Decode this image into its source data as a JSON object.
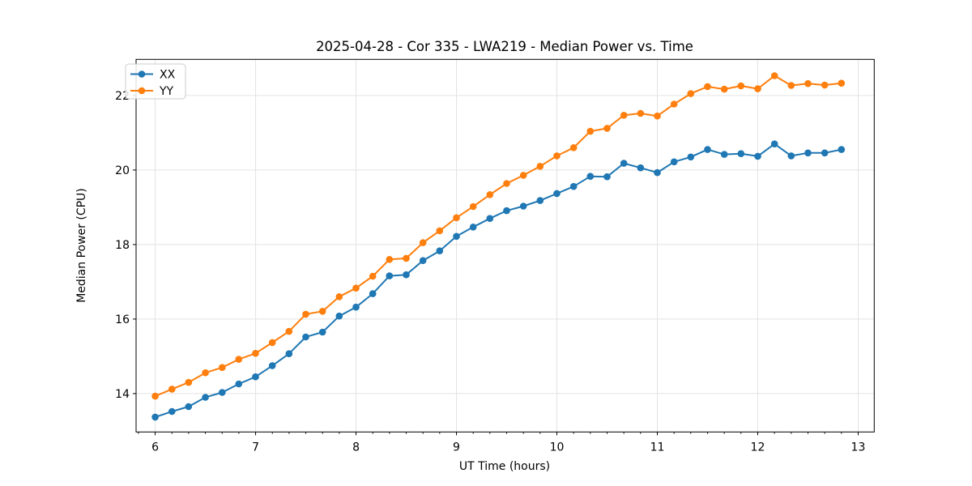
{
  "chart_data": {
    "type": "line",
    "title": "2025-04-28 - Cor 335 - LWA219 - Median Power vs. Time",
    "xlabel": "UT Time (hours)",
    "ylabel": "Median Power (CPU)",
    "xlim": [
      5.81,
      13.16
    ],
    "ylim": [
      12.97,
      22.97
    ],
    "x_ticks": [
      6,
      7,
      8,
      9,
      10,
      11,
      12,
      13
    ],
    "x_minor_tick_step_hours": 0.1667,
    "y_ticks": [
      14,
      16,
      18,
      20,
      22
    ],
    "grid": true,
    "legend_position": "upper left",
    "colors": {
      "xx_series": "#1f77b4",
      "yy_series": "#ff7f0e",
      "grid_line": "#e3e3e3",
      "spine": "#000000"
    },
    "x": [
      6.0,
      6.167,
      6.333,
      6.5,
      6.667,
      6.833,
      7.0,
      7.167,
      7.333,
      7.5,
      7.667,
      7.833,
      8.0,
      8.167,
      8.333,
      8.5,
      8.667,
      8.833,
      9.0,
      9.167,
      9.333,
      9.5,
      9.667,
      9.833,
      10.0,
      10.167,
      10.333,
      10.5,
      10.667,
      10.833,
      11.0,
      11.167,
      11.333,
      11.5,
      11.667,
      11.833,
      12.0,
      12.167,
      12.333,
      12.5,
      12.667,
      12.833
    ],
    "series": [
      {
        "name": "XX",
        "color": "#1f77b4",
        "marker": "circle",
        "values": [
          13.37,
          13.52,
          13.65,
          13.9,
          14.03,
          14.26,
          14.45,
          14.75,
          15.07,
          15.52,
          15.65,
          16.08,
          16.32,
          16.68,
          17.16,
          17.19,
          17.57,
          17.83,
          18.22,
          18.47,
          18.7,
          18.91,
          19.03,
          19.18,
          19.37,
          19.56,
          19.83,
          19.82,
          20.18,
          20.06,
          19.93,
          20.22,
          20.35,
          20.55,
          20.42,
          20.44,
          20.37,
          20.7,
          20.38,
          20.46,
          20.46,
          20.55
        ]
      },
      {
        "name": "YY",
        "color": "#ff7f0e",
        "marker": "circle",
        "values": [
          13.93,
          14.12,
          14.3,
          14.56,
          14.7,
          14.92,
          15.08,
          15.37,
          15.67,
          16.13,
          16.21,
          16.6,
          16.83,
          17.15,
          17.6,
          17.63,
          18.05,
          18.37,
          18.72,
          19.02,
          19.34,
          19.64,
          19.86,
          20.1,
          20.38,
          20.6,
          21.04,
          21.12,
          21.47,
          21.52,
          21.45,
          21.77,
          22.05,
          22.24,
          22.17,
          22.26,
          22.18,
          22.53,
          22.27,
          22.32,
          22.28,
          22.33
        ]
      }
    ]
  }
}
